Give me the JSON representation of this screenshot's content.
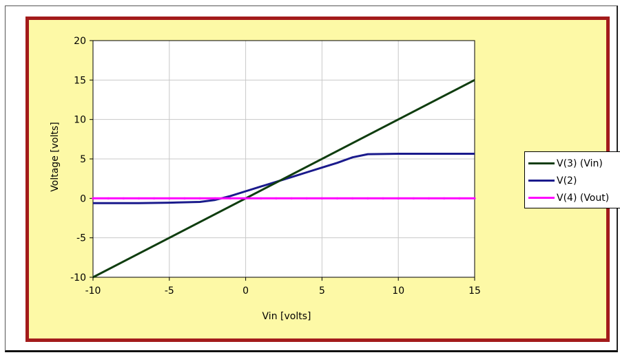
{
  "chart_data": {
    "type": "line",
    "xlabel": "Vin [volts]",
    "ylabel": "Voltage [volts]",
    "xlim": [
      -10,
      15
    ],
    "ylim": [
      -10,
      20
    ],
    "xticks": [
      -10,
      -5,
      0,
      5,
      10,
      15
    ],
    "yticks": [
      -10,
      -5,
      0,
      5,
      10,
      15,
      20
    ],
    "grid": true,
    "legend_position": "right",
    "plot_background": "#ffffff",
    "chart_background": "#fdf9a6",
    "frame_color": "#a31b1b",
    "series": [
      {
        "name": "V(3) (Vin)",
        "color": "#0f3d0f",
        "x": [
          -10,
          15
        ],
        "y": [
          -10,
          15
        ]
      },
      {
        "name": "V(2)",
        "color": "#1a1a8c",
        "x": [
          -10,
          -7,
          -5,
          -3,
          -2,
          -1,
          0,
          1,
          2,
          3,
          4,
          5,
          6,
          7,
          8,
          10,
          12,
          15
        ],
        "y": [
          -0.6,
          -0.6,
          -0.55,
          -0.45,
          -0.2,
          0.3,
          0.9,
          1.5,
          2.1,
          2.7,
          3.3,
          3.9,
          4.5,
          5.2,
          5.6,
          5.65,
          5.65,
          5.65
        ]
      },
      {
        "name": "V(4) (Vout)",
        "color": "#ff00ff",
        "x": [
          -10,
          -9,
          -8,
          -7,
          -6,
          -5,
          -4,
          -3,
          -2,
          -1,
          0,
          1,
          2,
          3,
          4,
          5,
          6,
          7,
          8,
          9,
          10,
          11,
          12,
          13,
          14,
          15
        ],
        "y": [
          0,
          0,
          0,
          0,
          0,
          0,
          0,
          0,
          0,
          0,
          0,
          0,
          0,
          0,
          0,
          0,
          0,
          0,
          0,
          0,
          0,
          0,
          0,
          0,
          0,
          0
        ]
      }
    ]
  }
}
